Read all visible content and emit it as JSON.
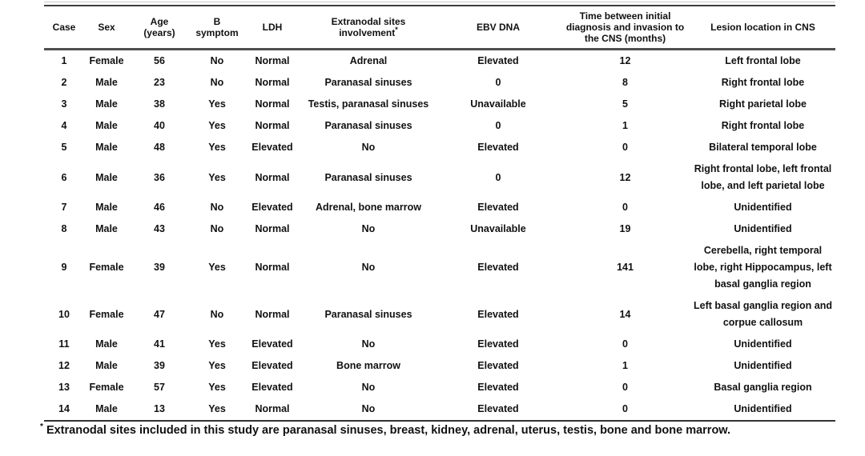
{
  "table": {
    "columns": [
      {
        "label": "Case"
      },
      {
        "label": "Sex"
      },
      {
        "label": "Age\n(years)"
      },
      {
        "label": "B\nsymptom"
      },
      {
        "label": "LDH"
      },
      {
        "label": "Extranodal sites\ninvolvement",
        "sup": "*"
      },
      {
        "label": "EBV DNA"
      },
      {
        "label": "Time between initial\ndiagnosis and invasion to\nthe CNS (months)"
      },
      {
        "label": "Lesion location in CNS"
      }
    ],
    "rows": [
      [
        "1",
        "Female",
        "56",
        "No",
        "Normal",
        "Adrenal",
        "Elevated",
        "12",
        "Left frontal lobe"
      ],
      [
        "2",
        "Male",
        "23",
        "No",
        "Normal",
        "Paranasal sinuses",
        "0",
        "8",
        "Right frontal lobe"
      ],
      [
        "3",
        "Male",
        "38",
        "Yes",
        "Normal",
        "Testis, paranasal sinuses",
        "Unavailable",
        "5",
        "Right parietal lobe"
      ],
      [
        "4",
        "Male",
        "40",
        "Yes",
        "Normal",
        "Paranasal sinuses",
        "0",
        "1",
        "Right frontal lobe"
      ],
      [
        "5",
        "Male",
        "48",
        "Yes",
        "Elevated",
        "No",
        "Elevated",
        "0",
        "Bilateral temporal lobe"
      ],
      [
        "6",
        "Male",
        "36",
        "Yes",
        "Normal",
        "Paranasal sinuses",
        "0",
        "12",
        "Right frontal lobe, left frontal lobe, and left parietal lobe"
      ],
      [
        "7",
        "Male",
        "46",
        "No",
        "Elevated",
        "Adrenal, bone marrow",
        "Elevated",
        "0",
        "Unidentified"
      ],
      [
        "8",
        "Male",
        "43",
        "No",
        "Normal",
        "No",
        "Unavailable",
        "19",
        "Unidentified"
      ],
      [
        "9",
        "Female",
        "39",
        "Yes",
        "Normal",
        "No",
        "Elevated",
        "141",
        "Cerebella, right temporal lobe, right Hippocampus, left basal ganglia region"
      ],
      [
        "10",
        "Female",
        "47",
        "No",
        "Normal",
        "Paranasal sinuses",
        "Elevated",
        "14",
        "Left basal ganglia region and corpue callosum"
      ],
      [
        "11",
        "Male",
        "41",
        "Yes",
        "Elevated",
        "No",
        "Elevated",
        "0",
        "Unidentified"
      ],
      [
        "12",
        "Male",
        "39",
        "Yes",
        "Elevated",
        "Bone marrow",
        "Elevated",
        "1",
        "Unidentified"
      ],
      [
        "13",
        "Female",
        "57",
        "Yes",
        "Elevated",
        "No",
        "Elevated",
        "0",
        "Basal ganglia region"
      ],
      [
        "14",
        "Male",
        "13",
        "Yes",
        "Normal",
        "No",
        "Elevated",
        "0",
        "Unidentified"
      ]
    ]
  },
  "footnote": {
    "sup": "*",
    "text": "Extranodal sites included in this study are paranasal sinuses, breast, kidney, adrenal, uterus, testis, bone and bone marrow."
  }
}
